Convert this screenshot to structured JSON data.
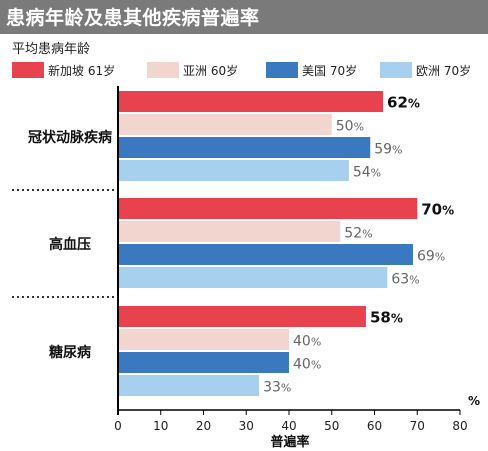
{
  "header": {
    "title": "患病年龄及患其他疾病普遍率"
  },
  "legend_title": "平均患病年龄",
  "chart_data": {
    "type": "bar",
    "orientation": "horizontal",
    "title": "患病年龄及患其他疾病普遍率",
    "xlabel": "普遍率",
    "xunit": "%",
    "xlim": [
      0,
      80
    ],
    "xticks": [
      0,
      10,
      20,
      30,
      40,
      50,
      60,
      70,
      80
    ],
    "categories": [
      "冠状动脉疾病",
      "高血压",
      "糖尿病"
    ],
    "series": [
      {
        "name": "新加坡 61岁",
        "color": "#e8424f",
        "values": [
          62,
          70,
          58
        ]
      },
      {
        "name": "亚洲 60岁",
        "color": "#f3d5cf",
        "values": [
          50,
          52,
          40
        ]
      },
      {
        "name": "美国 70岁",
        "color": "#3a78c0",
        "values": [
          59,
          69,
          40
        ]
      },
      {
        "name": "欧洲 70岁",
        "color": "#a6d0ee",
        "values": [
          54,
          63,
          33
        ]
      }
    ],
    "value_suffix": "%",
    "grid": false,
    "legend_position": "top"
  }
}
